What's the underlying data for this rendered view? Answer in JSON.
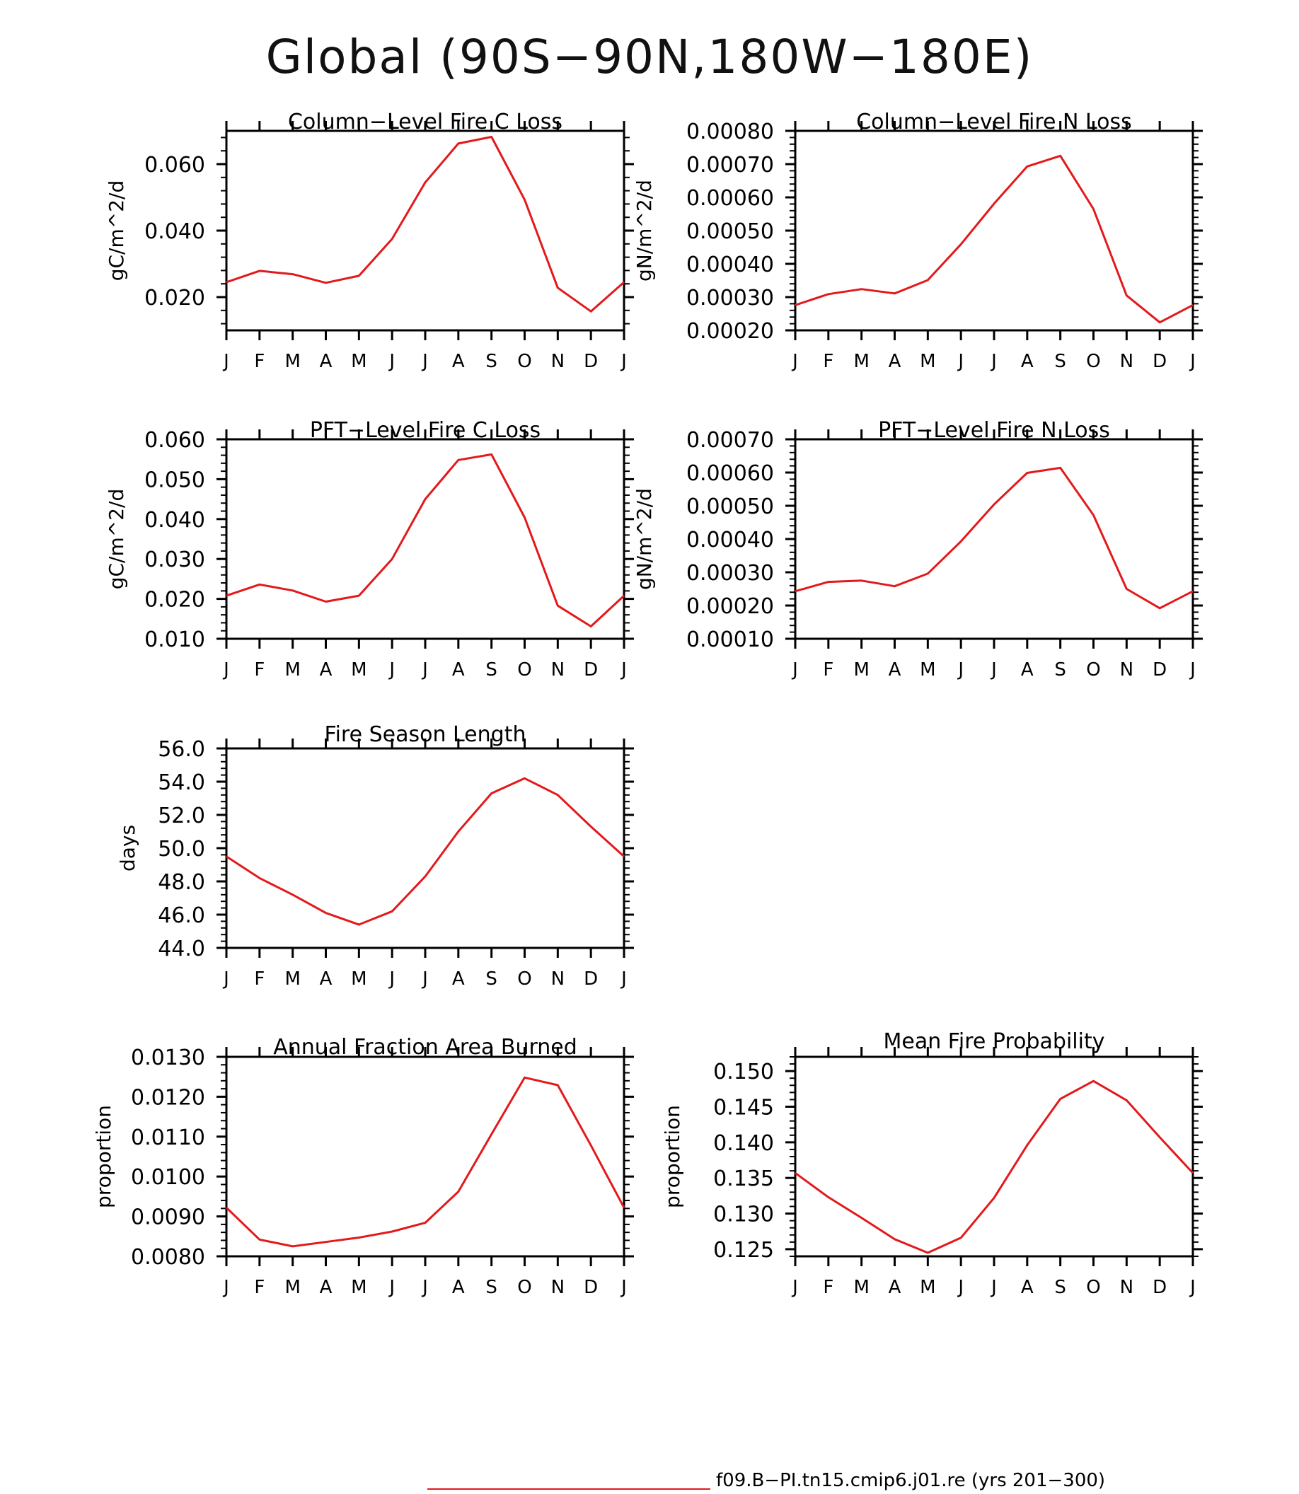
{
  "figure_title": "Global (90S−90N,180W−180E)",
  "legend": {
    "label": "f09.B−PI.tn15.cmip6.j01.re (yrs 201−300)",
    "color": "#e3191b"
  },
  "x_tick_labels": [
    "J",
    "F",
    "M",
    "A",
    "M",
    "J",
    "J",
    "A",
    "S",
    "O",
    "N",
    "D",
    "J"
  ],
  "chart_data": [
    {
      "type": "line",
      "title": "Column−Level Fire C Loss",
      "ylabel": "gC/m^2/d",
      "ylim": [
        0.01,
        0.07
      ],
      "yticks": [
        "0.020",
        "0.040",
        "0.060"
      ],
      "ytick_values": [
        0.02,
        0.04,
        0.06
      ],
      "values": [
        0.0245,
        0.0279,
        0.0269,
        0.0243,
        0.0264,
        0.0375,
        0.0545,
        0.0662,
        0.0682,
        0.0493,
        0.0228,
        0.0157,
        0.0245
      ]
    },
    {
      "type": "line",
      "title": "Column−Level Fire N Loss",
      "ylabel": "gN/m^2/d",
      "ylim": [
        0.0002,
        0.0008
      ],
      "yticks": [
        "0.00020",
        "0.00030",
        "0.00040",
        "0.00050",
        "0.00060",
        "0.00070",
        "0.00080"
      ],
      "ytick_values": [
        0.0002,
        0.0003,
        0.0004,
        0.0005,
        0.0006,
        0.0007,
        0.0008
      ],
      "values": [
        0.000276,
        0.000309,
        0.000324,
        0.000311,
        0.000351,
        0.000459,
        0.000581,
        0.000693,
        0.000725,
        0.000565,
        0.000305,
        0.000224,
        0.000276
      ]
    },
    {
      "type": "line",
      "title": "PFT−Level Fire C Loss",
      "ylabel": "gC/m^2/d",
      "ylim": [
        0.01,
        0.06
      ],
      "yticks": [
        "0.010",
        "0.020",
        "0.030",
        "0.040",
        "0.050",
        "0.060"
      ],
      "ytick_values": [
        0.01,
        0.02,
        0.03,
        0.04,
        0.05,
        0.06
      ],
      "values": [
        0.0208,
        0.0236,
        0.0221,
        0.0193,
        0.0208,
        0.03,
        0.045,
        0.0548,
        0.0562,
        0.0404,
        0.0183,
        0.0131,
        0.0208
      ]
    },
    {
      "type": "line",
      "title": "PFT−Level Fire N Loss",
      "ylabel": "gN/m^2/d",
      "ylim": [
        0.0001,
        0.0007
      ],
      "yticks": [
        "0.00010",
        "0.00020",
        "0.00030",
        "0.00040",
        "0.00050",
        "0.00060",
        "0.00070"
      ],
      "ytick_values": [
        0.0001,
        0.0002,
        0.0003,
        0.0004,
        0.0005,
        0.0006,
        0.0007
      ],
      "values": [
        0.000243,
        0.000271,
        0.000275,
        0.000258,
        0.000296,
        0.000393,
        0.000504,
        0.000599,
        0.000614,
        0.000472,
        0.00025,
        0.000192,
        0.000243
      ]
    },
    {
      "type": "line",
      "title": "Fire Season Length",
      "ylabel": "days",
      "ylim": [
        44.0,
        56.0
      ],
      "yticks": [
        "44.0",
        "46.0",
        "48.0",
        "50.0",
        "52.0",
        "54.0",
        "56.0"
      ],
      "ytick_values": [
        44,
        46,
        48,
        50,
        52,
        54,
        56
      ],
      "values": [
        49.5,
        48.2,
        47.2,
        46.1,
        45.4,
        46.2,
        48.3,
        51.0,
        53.3,
        54.2,
        53.2,
        51.3,
        49.5
      ]
    },
    {
      "type": "line",
      "title": "Annual Fraction Area Burned",
      "ylabel": "proportion",
      "ylim": [
        0.008,
        0.013
      ],
      "yticks": [
        "0.0080",
        "0.0090",
        "0.0100",
        "0.0110",
        "0.0120",
        "0.0130"
      ],
      "ytick_values": [
        0.008,
        0.009,
        0.01,
        0.011,
        0.012,
        0.013
      ],
      "values": [
        0.00922,
        0.00842,
        0.00825,
        0.00836,
        0.00847,
        0.00862,
        0.00884,
        0.00962,
        0.01106,
        0.01248,
        0.01229,
        0.01078,
        0.00922
      ]
    },
    {
      "type": "line",
      "title": "Mean Fire Probability",
      "ylabel": "proportion",
      "ylim": [
        0.124,
        0.152
      ],
      "yticks": [
        "0.125",
        "0.130",
        "0.135",
        "0.140",
        "0.145",
        "0.150"
      ],
      "ytick_values": [
        0.125,
        0.13,
        0.135,
        0.14,
        0.145,
        0.15
      ],
      "values": [
        0.1357,
        0.1323,
        0.1294,
        0.1264,
        0.1245,
        0.1266,
        0.1322,
        0.1396,
        0.1461,
        0.1486,
        0.1459,
        0.1407,
        0.1357
      ]
    }
  ]
}
